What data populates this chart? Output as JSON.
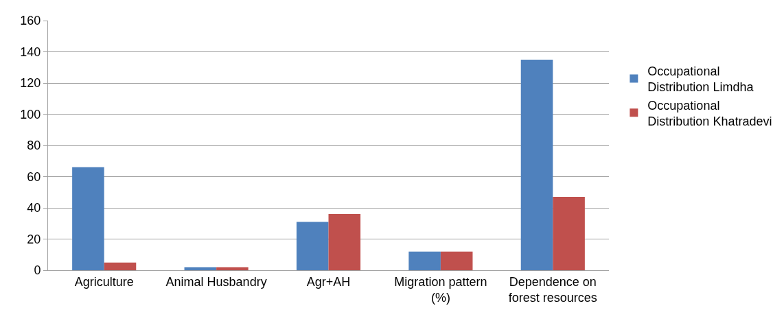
{
  "chart_data": {
    "type": "bar",
    "categories": [
      "Agriculture",
      "Animal Husbandry",
      "Agr+AH",
      "Migration pattern (%)",
      "Dependence on forest resources"
    ],
    "series": [
      {
        "name": "Occupational Distribution Limdha",
        "color": "#4f81bd",
        "values": [
          66,
          2,
          31,
          12,
          135
        ]
      },
      {
        "name": "Occupational Distribution Khatradevi",
        "color": "#c0504d",
        "values": [
          5,
          2,
          36,
          12,
          47
        ]
      }
    ],
    "ylim": [
      0,
      160
    ],
    "yticks": [
      0,
      20,
      40,
      60,
      80,
      100,
      120,
      140,
      160
    ],
    "grid": "y",
    "legend": "right"
  }
}
